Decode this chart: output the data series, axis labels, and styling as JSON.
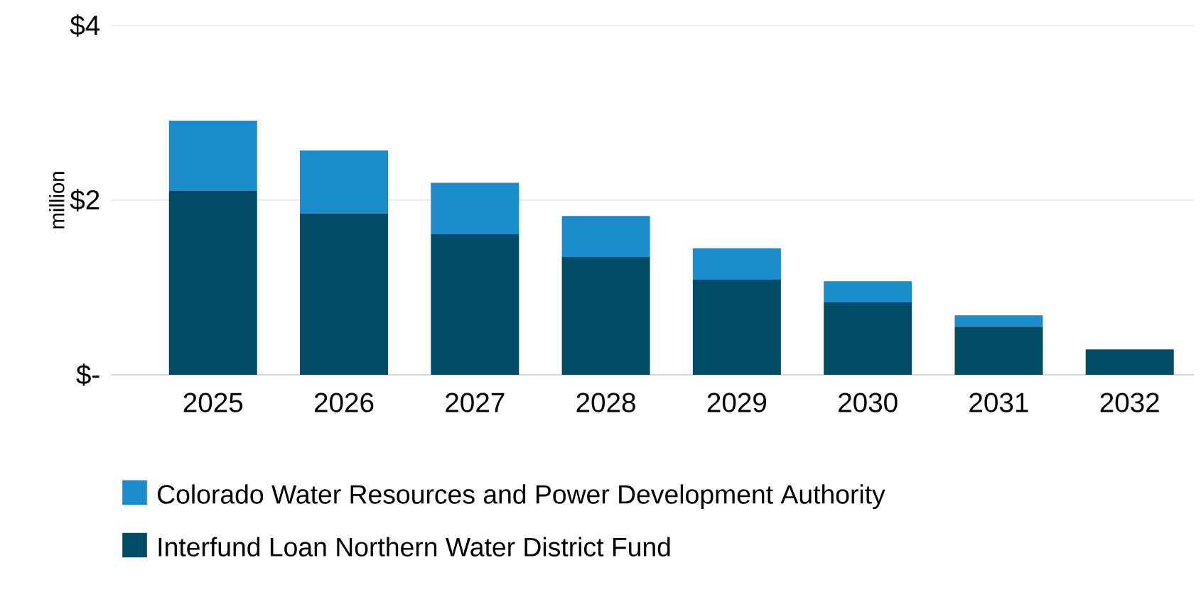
{
  "chart_data": {
    "type": "bar",
    "stacked": true,
    "ylabel": "million",
    "categories": [
      "2025",
      "2026",
      "2027",
      "2028",
      "2029",
      "2030",
      "2031",
      "2032"
    ],
    "series": [
      {
        "name": "Interfund Loan Northern Water District Fund",
        "color": "#004b66",
        "values": [
          2.11,
          1.85,
          1.61,
          1.35,
          1.09,
          0.83,
          0.55,
          0.29
        ]
      },
      {
        "name": "Colorado Water Resources and Power Development Authority",
        "color": "#1a8bcb",
        "values": [
          0.8,
          0.72,
          0.59,
          0.47,
          0.36,
          0.24,
          0.13,
          0
        ]
      }
    ],
    "ylim": [
      0,
      4
    ],
    "yticks": [
      {
        "value": 0,
        "label": "$-"
      },
      {
        "value": 2,
        "label": "$2"
      },
      {
        "value": 4,
        "label": "$4"
      }
    ],
    "grid": "y",
    "legend": "bottom"
  }
}
